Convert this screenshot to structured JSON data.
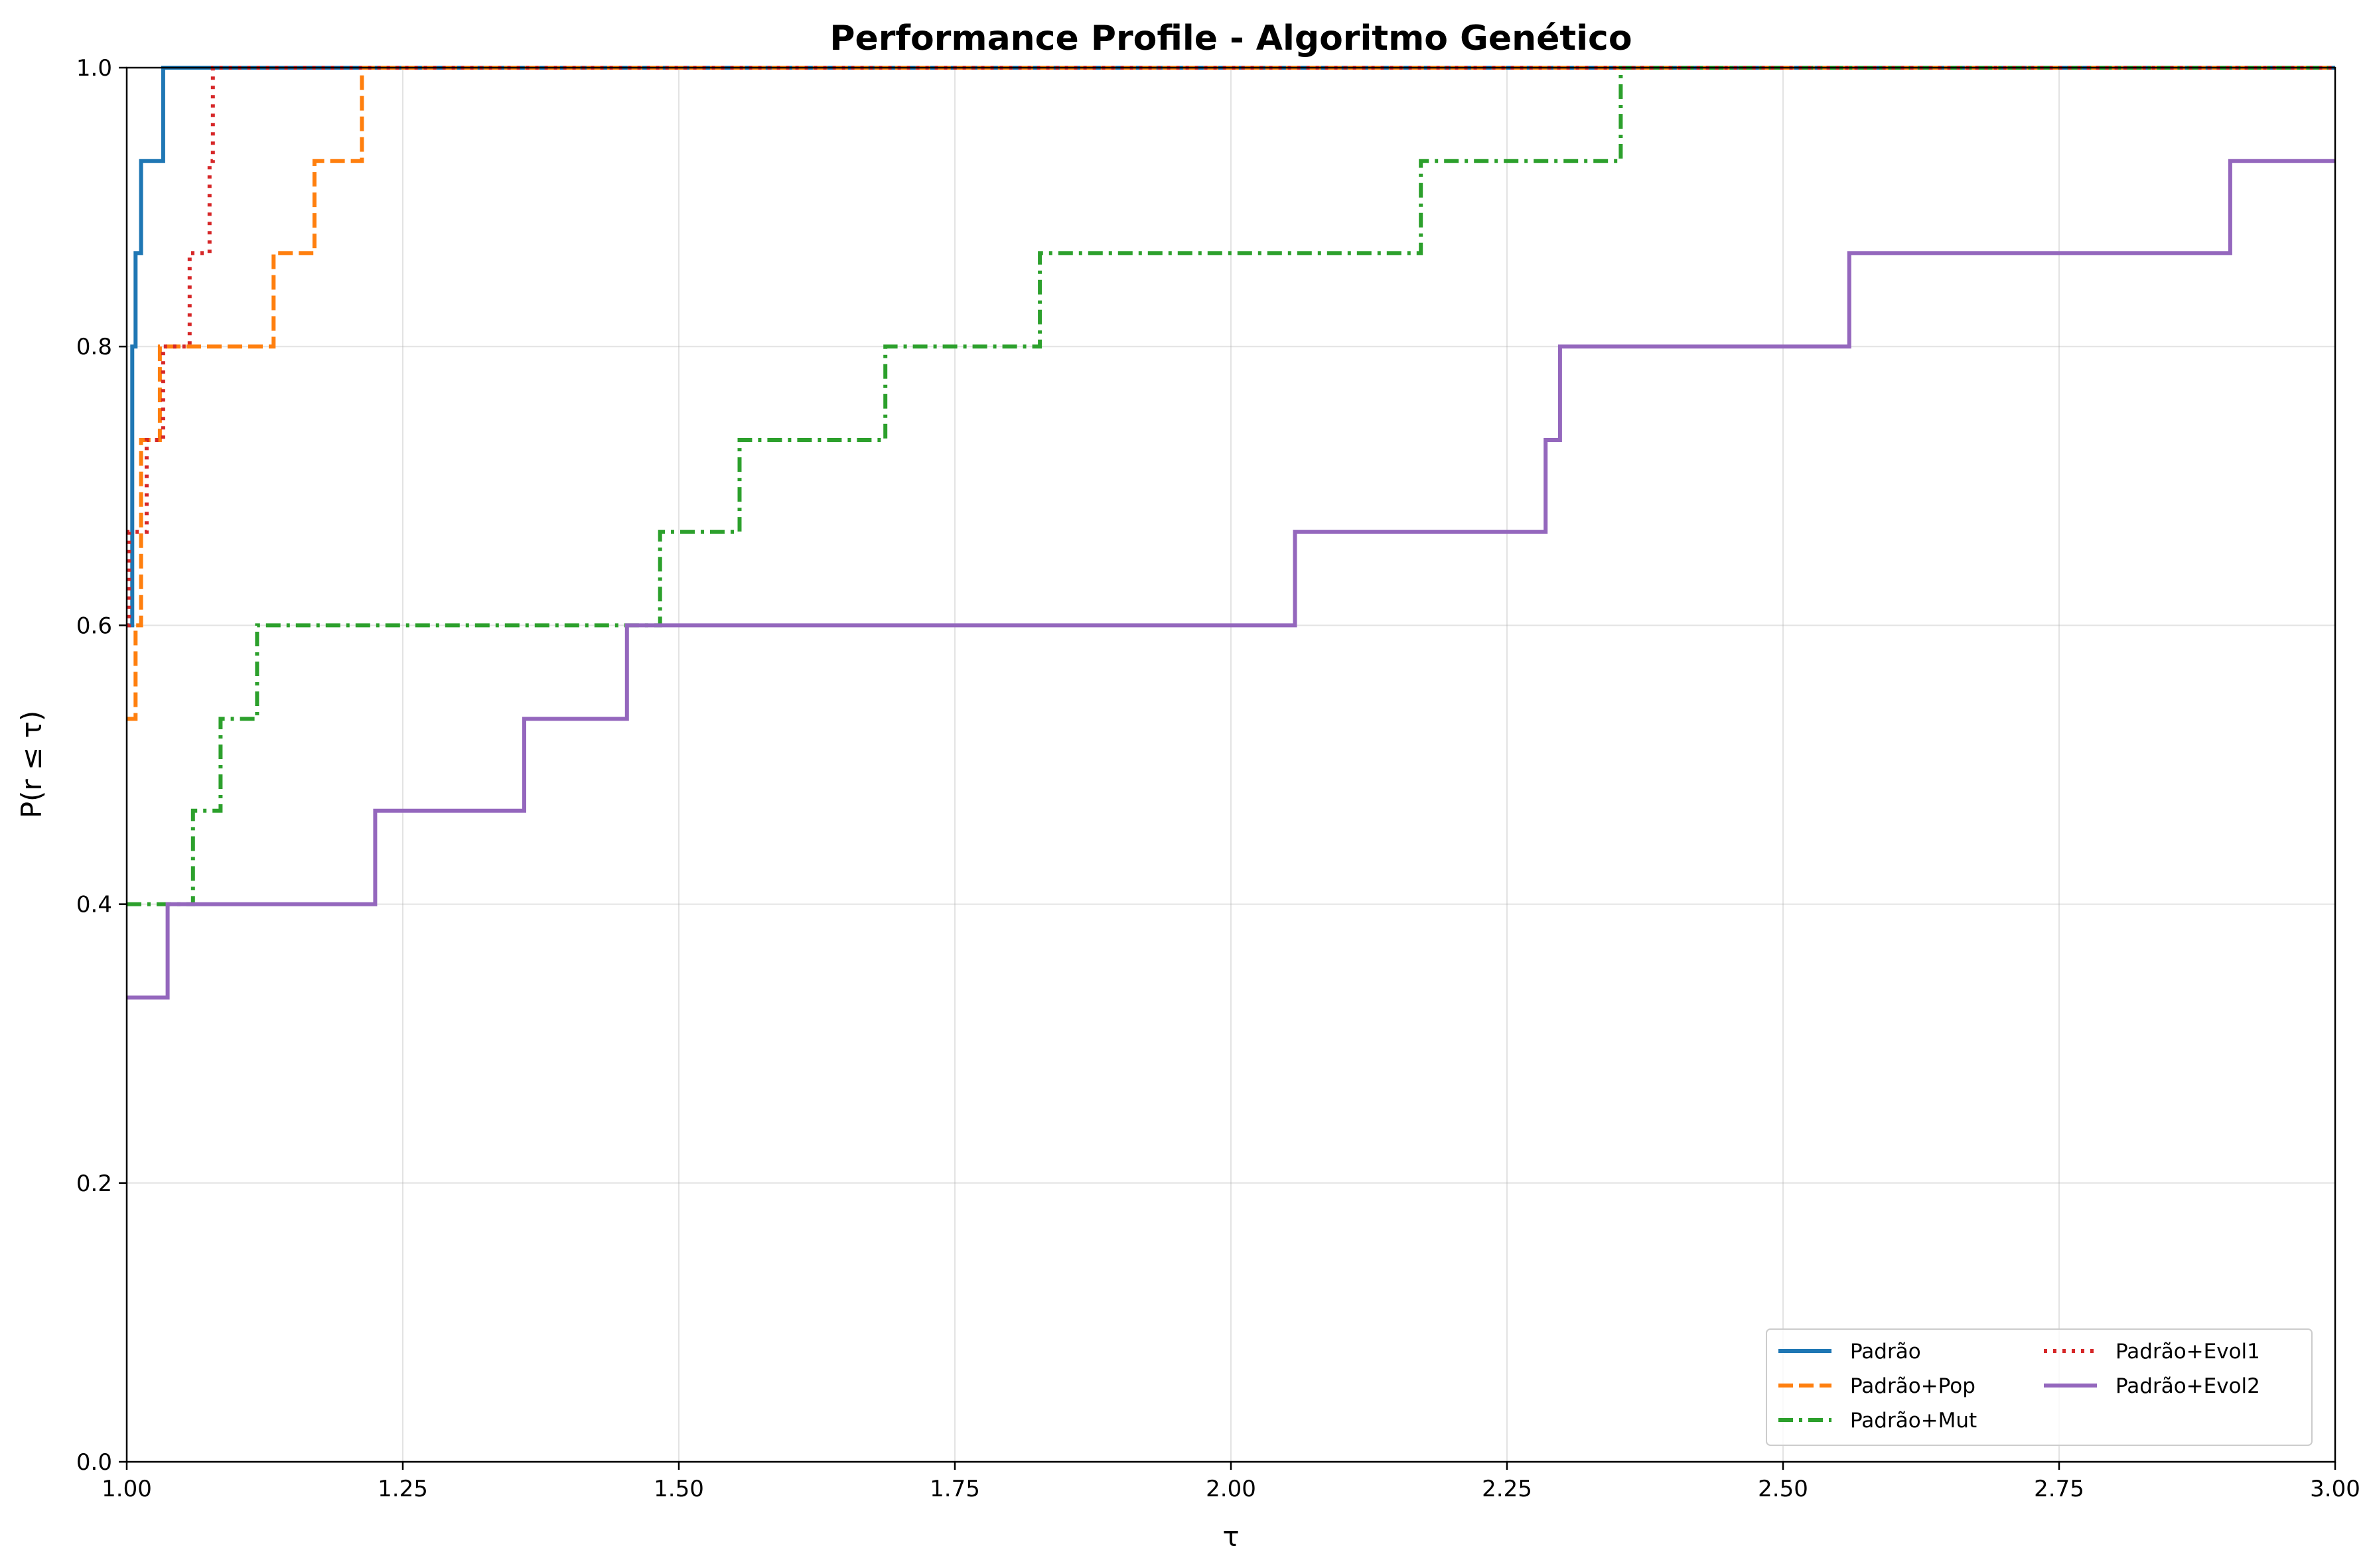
{
  "chart_data": {
    "type": "line",
    "title": "Performance Profile - Algoritmo Genético",
    "xlabel": "τ",
    "ylabel": "P(r ≤ τ)",
    "xlim": [
      1.0,
      3.0
    ],
    "ylim": [
      0.0,
      1.0
    ],
    "xticks": [
      "1.00",
      "1.25",
      "1.50",
      "1.75",
      "2.00",
      "2.25",
      "2.50",
      "2.75",
      "3.00"
    ],
    "yticks": [
      "0.0",
      "0.2",
      "0.4",
      "0.6",
      "0.8",
      "1.0"
    ],
    "grid": true,
    "legend_position": "lower-right",
    "legend_columns": 2,
    "series": [
      {
        "name": "Padrão",
        "color": "#1f77b4",
        "style": "solid",
        "x": [
          1.0,
          1.005,
          1.008,
          1.013,
          1.033,
          3.0
        ],
        "y": [
          0.6,
          0.8,
          0.867,
          0.933,
          1.0,
          1.0
        ]
      },
      {
        "name": "Padrão+Pop",
        "color": "#ff7f0e",
        "style": "dashed",
        "x": [
          1.0,
          1.008,
          1.013,
          1.03,
          1.133,
          1.17,
          1.213,
          3.0
        ],
        "y": [
          0.533,
          0.6,
          0.733,
          0.8,
          0.867,
          0.933,
          1.0,
          1.0
        ]
      },
      {
        "name": "Padrão+Mut",
        "color": "#2ca02c",
        "style": "dashdot",
        "x": [
          1.0,
          1.06,
          1.085,
          1.118,
          1.483,
          1.555,
          1.687,
          1.827,
          2.172,
          2.353,
          3.0
        ],
        "y": [
          0.4,
          0.467,
          0.533,
          0.6,
          0.667,
          0.733,
          0.8,
          0.867,
          0.933,
          1.0,
          1.0
        ]
      },
      {
        "name": "Padrão+Evol1",
        "color": "#d62728",
        "style": "dotted",
        "x": [
          1.0,
          1.002,
          1.018,
          1.033,
          1.057,
          1.075,
          1.078,
          3.0
        ],
        "y": [
          0.6,
          0.667,
          0.733,
          0.8,
          0.867,
          0.933,
          1.0,
          1.0
        ]
      },
      {
        "name": "Padrão+Evol2",
        "color": "#9467bd",
        "style": "solid",
        "x": [
          1.0,
          1.037,
          1.225,
          1.36,
          1.453,
          2.058,
          2.285,
          2.298,
          2.56,
          2.905,
          3.0
        ],
        "y": [
          0.333,
          0.4,
          0.467,
          0.533,
          0.6,
          0.667,
          0.733,
          0.8,
          0.867,
          0.933,
          0.933
        ]
      }
    ]
  }
}
